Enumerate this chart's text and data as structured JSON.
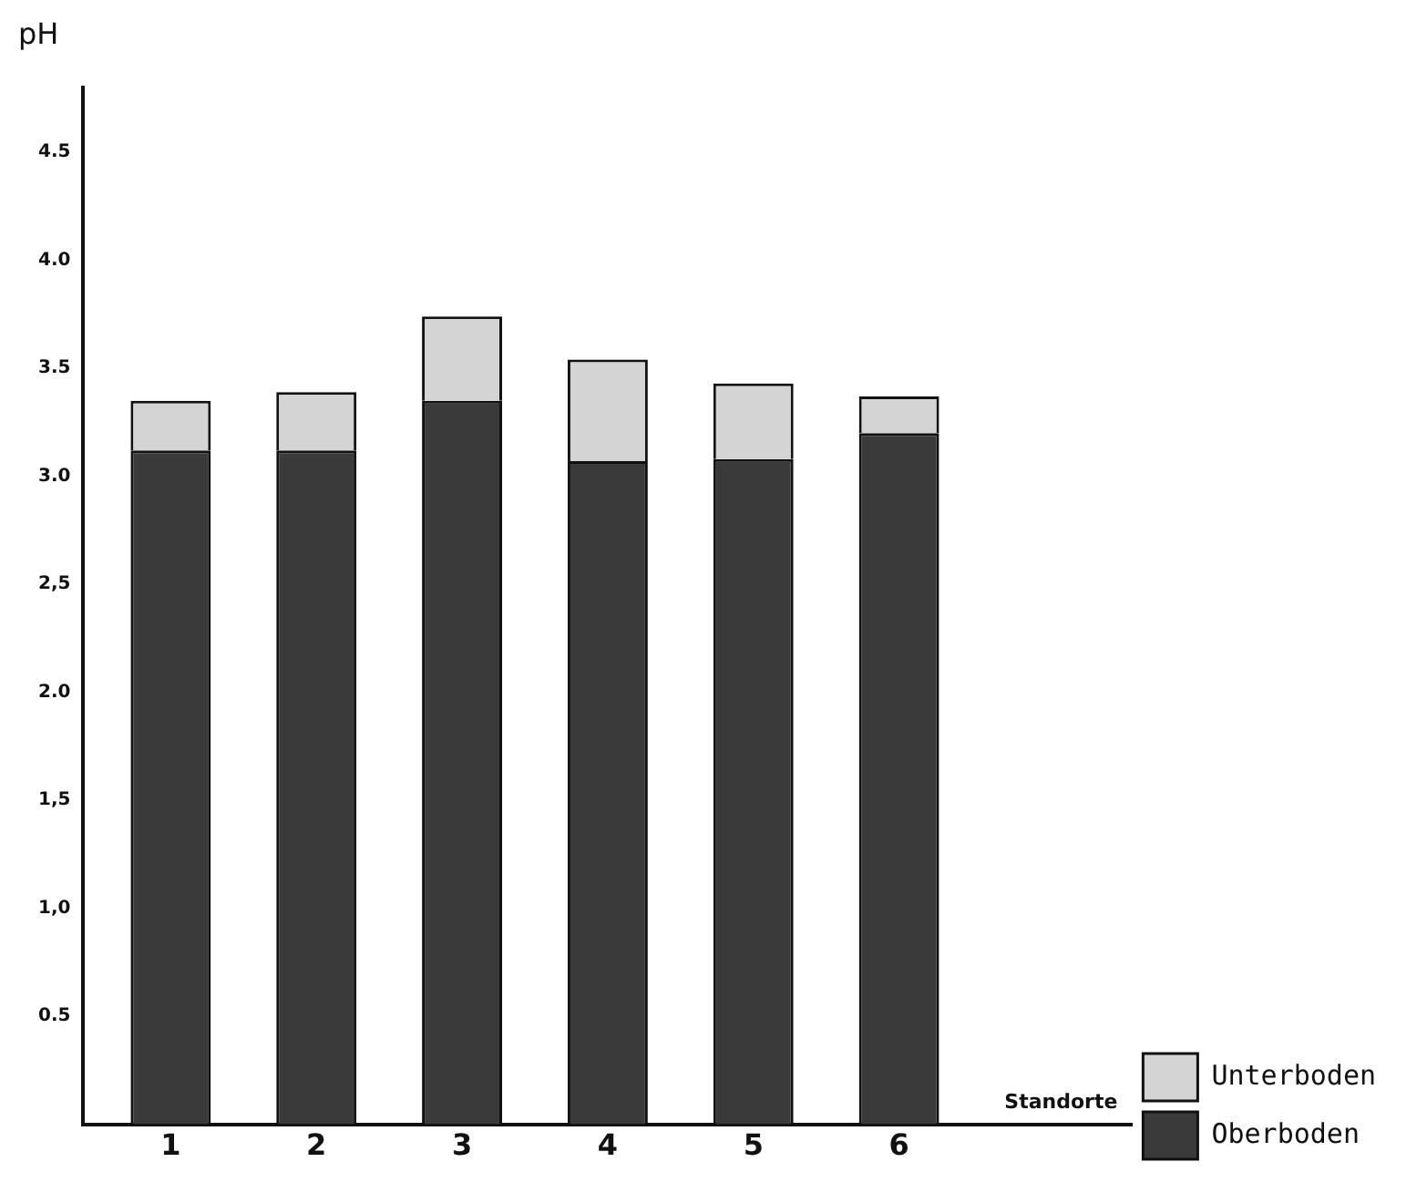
{
  "chart_data": {
    "type": "bar",
    "stacked": true,
    "xlabel": "Standorte",
    "ylabel": "pH",
    "categories": [
      "1",
      "2",
      "3",
      "4",
      "5",
      "6"
    ],
    "series": [
      {
        "name": "Oberboden",
        "color": "#3a3a3a",
        "values": [
          3.12,
          3.12,
          3.35,
          3.07,
          3.08,
          3.2
        ]
      },
      {
        "name": "Unterboden",
        "color": "#d4d4d4",
        "values": [
          0.23,
          0.27,
          0.39,
          0.47,
          0.35,
          0.17
        ]
      }
    ],
    "ylim": [
      0,
      4.8
    ],
    "yticks": [
      {
        "value": 0.5,
        "label": "0.5"
      },
      {
        "value": 1,
        "label": "1,0"
      },
      {
        "value": 1.5,
        "label": "1,5"
      },
      {
        "value": 2,
        "label": "2.0"
      },
      {
        "value": 2.5,
        "label": "2,5"
      },
      {
        "value": 3,
        "label": "3.0"
      },
      {
        "value": 3.5,
        "label": "3.5"
      },
      {
        "value": 4,
        "label": "4.0"
      },
      {
        "value": 4.5,
        "label": "4.5"
      }
    ],
    "grid": false,
    "legend": "bottom right"
  }
}
